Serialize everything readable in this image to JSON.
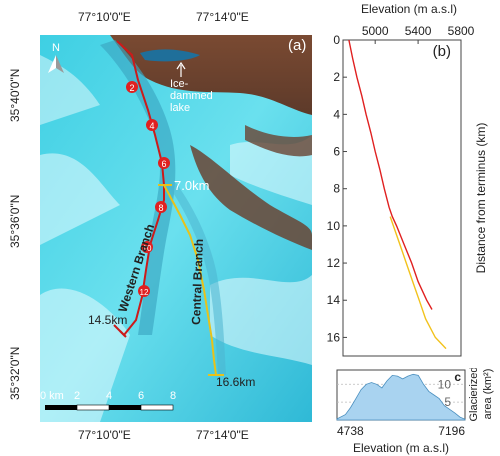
{
  "map": {
    "panel_label": "(a)",
    "north_label": "N",
    "top_ticks": [
      "77°10'0\"E",
      "77°14'0\"E"
    ],
    "bottom_ticks": [
      "77°10'0\"E",
      "77°14'0\"E"
    ],
    "left_ticks": [
      "35°40'0\"N",
      "35°36'0\"N",
      "35°32'0\"N"
    ],
    "lake_label_lines": [
      "Ice-",
      "dammed",
      "lake"
    ],
    "western_branch_label": "Western Branch",
    "central_branch_label": "Central Branch",
    "junction_label": "7.0km",
    "western_length_label": "14.5km",
    "central_length_label": "16.6km",
    "distance_markers": [
      "2",
      "4",
      "6",
      "8",
      "10",
      "12"
    ],
    "scale_bar_labels": [
      "0 km",
      "2",
      "4",
      "6",
      "8"
    ],
    "colors": {
      "western_branch": "#cc1a1a",
      "central_branch": "#e8c21a",
      "marker_fill": "#e02020",
      "ice": "#3fd0e6",
      "rock": "#8a5a3a"
    }
  },
  "chart_data": [
    {
      "type": "line",
      "panel_label": "(b)",
      "xlabel": "Elevation (m a.s.l)",
      "ylabel": "Distance from terminus (km)",
      "xlim": [
        4700,
        5800
      ],
      "x_ticks": [
        5000,
        5400,
        5800
      ],
      "ylim": [
        0,
        17
      ],
      "y_inverted": true,
      "y_ticks": [
        0,
        2,
        4,
        6,
        8,
        10,
        12,
        14,
        16
      ],
      "series": [
        {
          "color": "#e02020",
          "points": [
            [
              4755,
              0
            ],
            [
              4790,
              1
            ],
            [
              4830,
              2
            ],
            [
              4875,
              3
            ],
            [
              4915,
              4
            ],
            [
              4960,
              5
            ],
            [
              5000,
              6
            ],
            [
              5045,
              7
            ],
            [
              5085,
              8
            ],
            [
              5130,
              9
            ],
            [
              5160,
              9.5
            ],
            [
              5200,
              10
            ],
            [
              5270,
              11
            ],
            [
              5340,
              12
            ],
            [
              5400,
              13
            ],
            [
              5480,
              14
            ],
            [
              5530,
              14.5
            ]
          ]
        },
        {
          "color": "#f2c21c",
          "points": [
            [
              5140,
              9.5
            ],
            [
              5170,
              10
            ],
            [
              5230,
              11
            ],
            [
              5290,
              12
            ],
            [
              5350,
              13
            ],
            [
              5410,
              14
            ],
            [
              5470,
              15
            ],
            [
              5560,
              16
            ],
            [
              5660,
              16.6
            ]
          ]
        }
      ]
    },
    {
      "type": "area",
      "panel_label": "c",
      "xlabel": "Elevation (m a.s.l)",
      "ylabel_lines": [
        "Glacierized",
        "area (km²)"
      ],
      "x_ticks": [
        4738,
        7196
      ],
      "xlim": [
        4738,
        7196
      ],
      "y_ticks": [
        5,
        10
      ],
      "ylim": [
        0,
        14
      ],
      "grid": true,
      "fill_color": "#a9d3f0",
      "x": [
        4738,
        4900,
        5000,
        5100,
        5200,
        5300,
        5400,
        5500,
        5600,
        5700,
        5800,
        5900,
        6000,
        6100,
        6200,
        6300,
        6400,
        6500,
        6600,
        6700,
        6800,
        6900,
        7000,
        7100,
        7196
      ],
      "values": [
        0.3,
        1.5,
        3.5,
        6.0,
        8.5,
        10.0,
        10.5,
        10.0,
        9.0,
        11.0,
        12.5,
        12.3,
        11.5,
        12.3,
        12.8,
        12.5,
        10.0,
        8.0,
        7.0,
        6.0,
        4.0,
        3.0,
        2.0,
        0.8,
        0.2
      ]
    }
  ]
}
